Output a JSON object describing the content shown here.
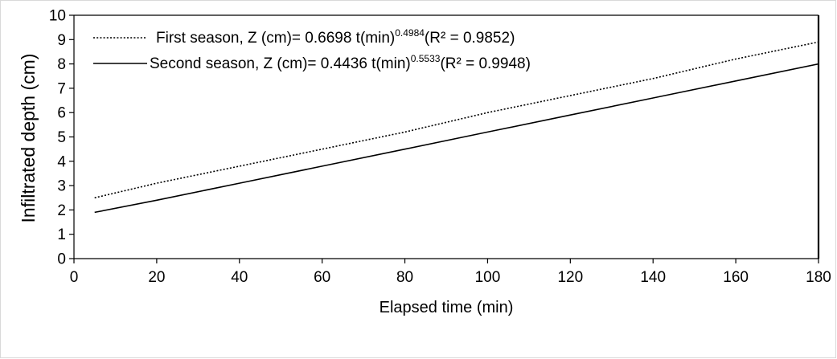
{
  "chart_data": {
    "type": "line",
    "xlabel": "Elapsed time (min)",
    "ylabel": "Infiltrated depth (cm)",
    "xlim": [
      0,
      180
    ],
    "ylim": [
      0,
      10
    ],
    "xticks": [
      0,
      20,
      40,
      60,
      80,
      100,
      120,
      140,
      160,
      180
    ],
    "yticks": [
      0,
      1,
      2,
      3,
      4,
      5,
      6,
      7,
      8,
      9,
      10
    ],
    "grid": false,
    "legend_position": "top-left",
    "series": [
      {
        "name": "First season",
        "legend": {
          "prefix": "First season, Z (cm)= 0.6698 t(min)",
          "exponent": "0.4984",
          "suffix": "(R² = 0.9852)"
        },
        "line_style": "dotted",
        "color": "#000000",
        "x": [
          5,
          20,
          40,
          60,
          80,
          100,
          120,
          140,
          160,
          180
        ],
        "y": [
          2.5,
          3.1,
          3.8,
          4.5,
          5.2,
          6.0,
          6.7,
          7.4,
          8.2,
          8.9
        ]
      },
      {
        "name": "Second season",
        "legend": {
          "prefix": "Second season, Z (cm)= 0.4436 t(min)",
          "exponent": "0.5533",
          "suffix": "(R² = 0.9948)"
        },
        "line_style": "solid",
        "color": "#000000",
        "x": [
          5,
          20,
          40,
          60,
          80,
          100,
          120,
          140,
          160,
          180
        ],
        "y": [
          1.9,
          2.4,
          3.1,
          3.8,
          4.5,
          5.2,
          5.9,
          6.6,
          7.3,
          8.0
        ]
      }
    ]
  }
}
